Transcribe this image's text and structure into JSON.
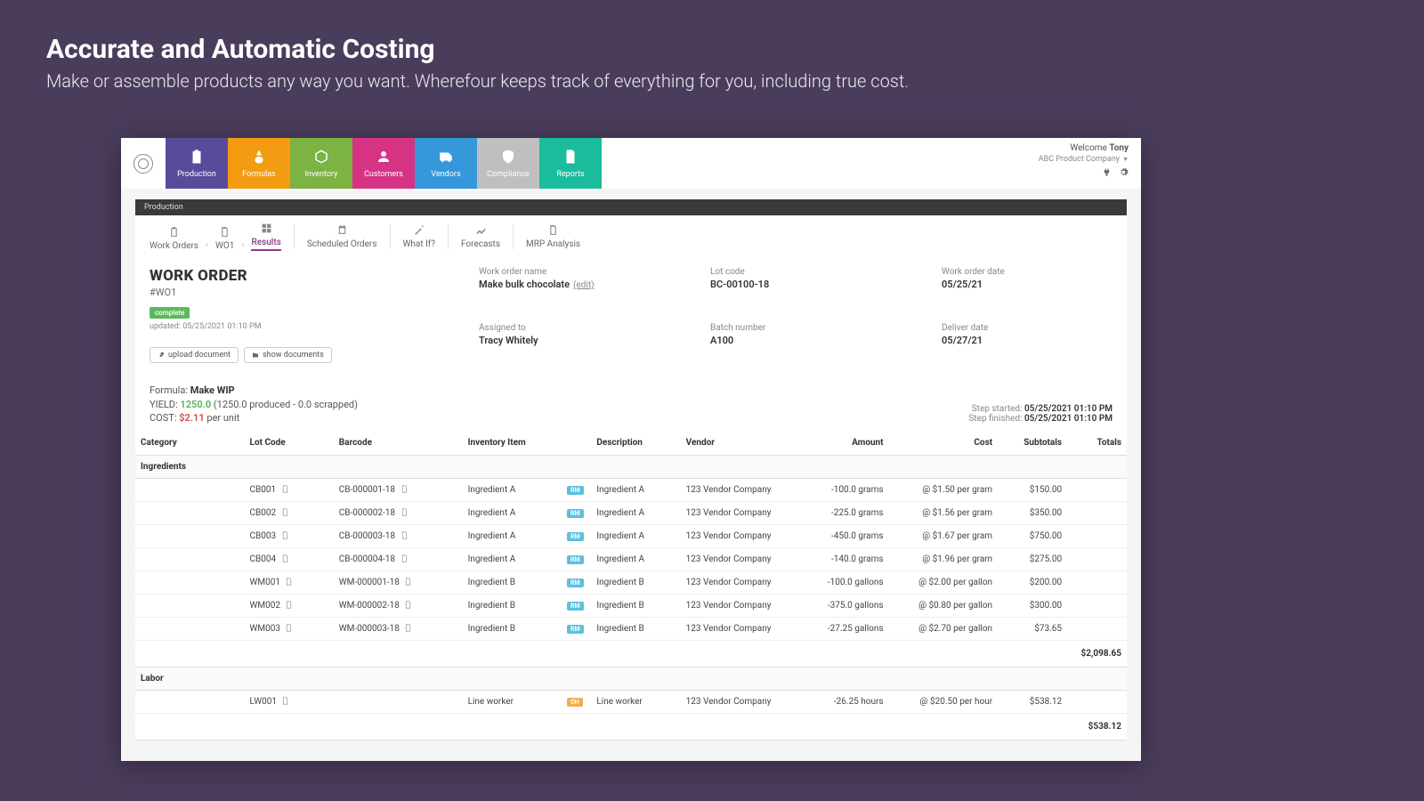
{
  "pageHeader": {
    "title": "Accurate and Automatic Costing",
    "subtitle": "Make or assemble products any way you want. Wherefour keeps track of everything for you, including true cost."
  },
  "nav": {
    "tabs": [
      {
        "label": "Production",
        "color": "#5a4a9c"
      },
      {
        "label": "Formulas",
        "color": "#f39c12"
      },
      {
        "label": "Inventory",
        "color": "#7cb342"
      },
      {
        "label": "Customers",
        "color": "#d63384"
      },
      {
        "label": "Vendors",
        "color": "#3498db"
      },
      {
        "label": "Compliance",
        "color": "#bfbfbf"
      },
      {
        "label": "Reports",
        "color": "#1abc9c"
      }
    ]
  },
  "user": {
    "welcome": "Welcome",
    "name": "Tony",
    "company": "ABC Product Company"
  },
  "sectionTitle": "Production",
  "breadcrumb": {
    "items": [
      "Work Orders",
      "WO1",
      "Results"
    ]
  },
  "toolbar": {
    "items": [
      {
        "label": "Scheduled Orders"
      },
      {
        "label": "What If?"
      },
      {
        "label": "Forecasts"
      },
      {
        "label": "MRP Analysis"
      }
    ]
  },
  "workOrder": {
    "title": "WORK ORDER",
    "id": "#WO1",
    "status": "complete",
    "updated": "updated: 05/25/2021 01:10 PM",
    "uploadBtn": "upload document",
    "showBtn": "show documents",
    "fields": {
      "nameLabel": "Work order name",
      "nameValue": "Make bulk chocolate",
      "editLabel": "(edit)",
      "assignedLabel": "Assigned to",
      "assignedValue": "Tracy Whitely",
      "lotLabel": "Lot code",
      "lotValue": "BC-00100-18",
      "batchLabel": "Batch number",
      "batchValue": "A100",
      "dateLabel": "Work order date",
      "dateValue": "05/25/21",
      "deliverLabel": "Deliver date",
      "deliverValue": "05/27/21"
    }
  },
  "formula": {
    "label": "Formula:",
    "name": "Make WIP",
    "yieldLabel": "YIELD:",
    "yieldValue": "1250.0",
    "yieldNote": "(1250.0 produced - 0.0 scrapped)",
    "costLabel": "COST:",
    "costValue": "$2.11",
    "costUnit": "per unit",
    "stepStartedLabel": "Step started:",
    "stepStartedValue": "05/25/2021 01:10 PM",
    "stepFinishedLabel": "Step finished:",
    "stepFinishedValue": "05/25/2021 01:10 PM"
  },
  "table": {
    "headers": {
      "category": "Category",
      "lotCode": "Lot Code",
      "barcode": "Barcode",
      "invItem": "Inventory Item",
      "description": "Description",
      "vendor": "Vendor",
      "amount": "Amount",
      "cost": "Cost",
      "subtotals": "Subtotals",
      "totals": "Totals"
    },
    "sections": {
      "ingredients": "Ingredients",
      "labor": "Labor"
    },
    "rows": [
      {
        "lot": "CB001",
        "barcode": "CB-000001-18",
        "item": "Ingredient A",
        "tag": "RM",
        "desc": "Ingredient A",
        "vendor": "123 Vendor Company",
        "amount": "-100.0 grams",
        "cost": "@ $1.50 per gram",
        "subtotal": "$150.00"
      },
      {
        "lot": "CB002",
        "barcode": "CB-000002-18",
        "item": "Ingredient A",
        "tag": "RM",
        "desc": "Ingredient A",
        "vendor": "123 Vendor Company",
        "amount": "-225.0 grams",
        "cost": "@ $1.56 per gram",
        "subtotal": "$350.00"
      },
      {
        "lot": "CB003",
        "barcode": "CB-000003-18",
        "item": "Ingredient A",
        "tag": "RM",
        "desc": "Ingredient A",
        "vendor": "123 Vendor Company",
        "amount": "-450.0 grams",
        "cost": "@ $1.67 per gram",
        "subtotal": "$750.00"
      },
      {
        "lot": "CB004",
        "barcode": "CB-000004-18",
        "item": "Ingredient A",
        "tag": "RM",
        "desc": "Ingredient A",
        "vendor": "123 Vendor Company",
        "amount": "-140.0 grams",
        "cost": "@ $1.96 per gram",
        "subtotal": "$275.00"
      },
      {
        "lot": "WM001",
        "barcode": "WM-000001-18",
        "item": "Ingredient B",
        "tag": "RM",
        "desc": "Ingredient B",
        "vendor": "123 Vendor Company",
        "amount": "-100.0 gallons",
        "cost": "@ $2.00 per gallon",
        "subtotal": "$200.00"
      },
      {
        "lot": "WM002",
        "barcode": "WM-000002-18",
        "item": "Ingredient B",
        "tag": "RM",
        "desc": "Ingredient B",
        "vendor": "123 Vendor Company",
        "amount": "-375.0 gallons",
        "cost": "@ $0.80 per gallon",
        "subtotal": "$300.00"
      },
      {
        "lot": "WM003",
        "barcode": "WM-000003-18",
        "item": "Ingredient B",
        "tag": "RM",
        "desc": "Ingredient B",
        "vendor": "123 Vendor Company",
        "amount": "-27.25 gallons",
        "cost": "@ $2.70 per gallon",
        "subtotal": "$73.65"
      }
    ],
    "ingredientsTotal": "$2,098.65",
    "laborRows": [
      {
        "lot": "LW001",
        "barcode": "",
        "item": "Line worker",
        "tag": "OH",
        "desc": "Line worker",
        "vendor": "123 Vendor Company",
        "amount": "-26.25 hours",
        "cost": "@ $20.50 per hour",
        "subtotal": "$538.12"
      }
    ],
    "laborTotal": "$538.12"
  }
}
